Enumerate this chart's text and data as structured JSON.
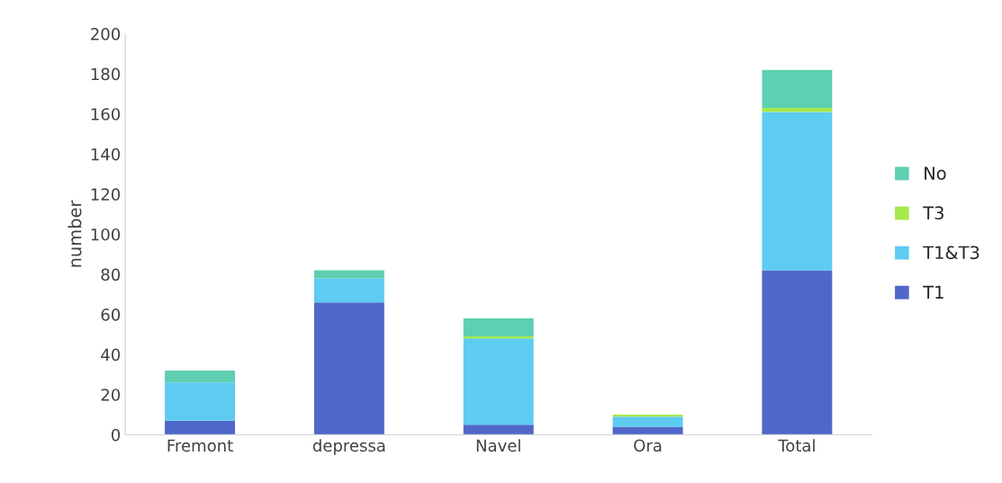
{
  "chart_data": {
    "type": "bar",
    "ylabel": "number",
    "stacked": true,
    "legend": "right",
    "categories": [
      "Fremont",
      "depressa",
      "Navel",
      "Ora",
      "Total"
    ],
    "series": [
      {
        "name": "T1",
        "color": "#4f67c8",
        "values": [
          7,
          66,
          5,
          4,
          82
        ]
      },
      {
        "name": "T1&T3",
        "color": "#5ecbf2",
        "values": [
          19,
          12,
          43,
          5,
          79
        ]
      },
      {
        "name": "T3",
        "color": "#a6e84c",
        "values": [
          0,
          0,
          1,
          1,
          2
        ]
      },
      {
        "name": "No",
        "color": "#5ecfb1",
        "values": [
          6,
          4,
          9,
          0,
          19
        ]
      }
    ],
    "ylim": [
      0,
      200
    ],
    "yticks": [
      0,
      20,
      40,
      60,
      80,
      100,
      120,
      140,
      160,
      180,
      200
    ],
    "grid": false
  }
}
